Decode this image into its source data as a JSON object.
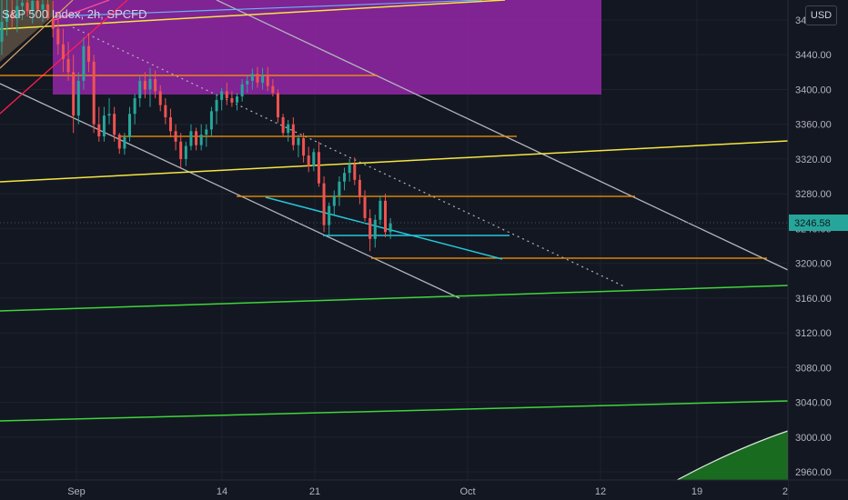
{
  "header": {
    "symbol_title": "S&P 500 Index, 2h, SPCFD",
    "currency_label": "USD"
  },
  "colors": {
    "background": "#131722",
    "grid": "#1e222d",
    "up": "#26a69a",
    "down": "#ef5350",
    "last_price_bg": "#26a69a",
    "fib_zone": "#9c27b0"
  },
  "chart_data": {
    "type": "candlestick",
    "x_ticks": [
      "Sep",
      "14",
      "21",
      "Oct",
      "12",
      "19",
      "2"
    ],
    "y_ticks": [
      3480,
      3440,
      3400,
      3360,
      3320,
      3280,
      3240,
      3200,
      3160,
      3120,
      3080,
      3040,
      3000,
      2960
    ],
    "ylim": [
      2955,
      3510
    ],
    "last_price": "3246.58",
    "grid": true,
    "candles": [
      {
        "o": 3455,
        "h": 3510,
        "l": 3440,
        "c": 3478
      },
      {
        "o": 3478,
        "h": 3506,
        "l": 3462,
        "c": 3490
      },
      {
        "o": 3490,
        "h": 3512,
        "l": 3470,
        "c": 3482
      },
      {
        "o": 3482,
        "h": 3505,
        "l": 3466,
        "c": 3496
      },
      {
        "o": 3496,
        "h": 3515,
        "l": 3480,
        "c": 3500
      },
      {
        "o": 3500,
        "h": 3516,
        "l": 3484,
        "c": 3490
      },
      {
        "o": 3490,
        "h": 3512,
        "l": 3476,
        "c": 3502
      },
      {
        "o": 3502,
        "h": 3514,
        "l": 3488,
        "c": 3492
      },
      {
        "o": 3492,
        "h": 3510,
        "l": 3478,
        "c": 3498
      },
      {
        "o": 3498,
        "h": 3512,
        "l": 3480,
        "c": 3482
      },
      {
        "o": 3482,
        "h": 3502,
        "l": 3460,
        "c": 3470
      },
      {
        "o": 3470,
        "h": 3490,
        "l": 3440,
        "c": 3452
      },
      {
        "o": 3452,
        "h": 3470,
        "l": 3420,
        "c": 3435
      },
      {
        "o": 3435,
        "h": 3455,
        "l": 3410,
        "c": 3420
      },
      {
        "o": 3420,
        "h": 3440,
        "l": 3350,
        "c": 3370
      },
      {
        "o": 3370,
        "h": 3420,
        "l": 3360,
        "c": 3410
      },
      {
        "o": 3410,
        "h": 3460,
        "l": 3400,
        "c": 3450
      },
      {
        "o": 3450,
        "h": 3465,
        "l": 3420,
        "c": 3432
      },
      {
        "o": 3432,
        "h": 3440,
        "l": 3350,
        "c": 3360
      },
      {
        "o": 3360,
        "h": 3380,
        "l": 3340,
        "c": 3346
      },
      {
        "o": 3346,
        "h": 3380,
        "l": 3340,
        "c": 3370
      },
      {
        "o": 3370,
        "h": 3390,
        "l": 3360,
        "c": 3372
      },
      {
        "o": 3372,
        "h": 3380,
        "l": 3340,
        "c": 3348
      },
      {
        "o": 3348,
        "h": 3350,
        "l": 3326,
        "c": 3332
      },
      {
        "o": 3332,
        "h": 3350,
        "l": 3325,
        "c": 3345
      },
      {
        "o": 3345,
        "h": 3380,
        "l": 3340,
        "c": 3372
      },
      {
        "o": 3372,
        "h": 3395,
        "l": 3360,
        "c": 3390
      },
      {
        "o": 3390,
        "h": 3415,
        "l": 3380,
        "c": 3410
      },
      {
        "o": 3410,
        "h": 3420,
        "l": 3390,
        "c": 3400
      },
      {
        "o": 3400,
        "h": 3425,
        "l": 3380,
        "c": 3412
      },
      {
        "o": 3412,
        "h": 3422,
        "l": 3390,
        "c": 3398
      },
      {
        "o": 3398,
        "h": 3405,
        "l": 3375,
        "c": 3382
      },
      {
        "o": 3382,
        "h": 3390,
        "l": 3360,
        "c": 3368
      },
      {
        "o": 3368,
        "h": 3378,
        "l": 3345,
        "c": 3352
      },
      {
        "o": 3352,
        "h": 3360,
        "l": 3330,
        "c": 3340
      },
      {
        "o": 3340,
        "h": 3350,
        "l": 3310,
        "c": 3320
      },
      {
        "o": 3320,
        "h": 3340,
        "l": 3312,
        "c": 3335
      },
      {
        "o": 3335,
        "h": 3360,
        "l": 3330,
        "c": 3352
      },
      {
        "o": 3352,
        "h": 3356,
        "l": 3330,
        "c": 3336
      },
      {
        "o": 3336,
        "h": 3360,
        "l": 3330,
        "c": 3348
      },
      {
        "o": 3348,
        "h": 3360,
        "l": 3334,
        "c": 3354
      },
      {
        "o": 3354,
        "h": 3380,
        "l": 3346,
        "c": 3375
      },
      {
        "o": 3375,
        "h": 3395,
        "l": 3360,
        "c": 3388
      },
      {
        "o": 3388,
        "h": 3402,
        "l": 3376,
        "c": 3398
      },
      {
        "o": 3398,
        "h": 3408,
        "l": 3382,
        "c": 3390
      },
      {
        "o": 3390,
        "h": 3398,
        "l": 3380,
        "c": 3385
      },
      {
        "o": 3385,
        "h": 3396,
        "l": 3376,
        "c": 3392
      },
      {
        "o": 3392,
        "h": 3412,
        "l": 3386,
        "c": 3406
      },
      {
        "o": 3406,
        "h": 3416,
        "l": 3396,
        "c": 3410
      },
      {
        "o": 3410,
        "h": 3424,
        "l": 3400,
        "c": 3418
      },
      {
        "o": 3418,
        "h": 3426,
        "l": 3402,
        "c": 3408
      },
      {
        "o": 3408,
        "h": 3425,
        "l": 3400,
        "c": 3416
      },
      {
        "o": 3416,
        "h": 3426,
        "l": 3398,
        "c": 3404
      },
      {
        "o": 3404,
        "h": 3412,
        "l": 3392,
        "c": 3396
      },
      {
        "o": 3396,
        "h": 3400,
        "l": 3362,
        "c": 3368
      },
      {
        "o": 3368,
        "h": 3372,
        "l": 3346,
        "c": 3350
      },
      {
        "o": 3350,
        "h": 3365,
        "l": 3340,
        "c": 3360
      },
      {
        "o": 3360,
        "h": 3368,
        "l": 3330,
        "c": 3336
      },
      {
        "o": 3336,
        "h": 3348,
        "l": 3322,
        "c": 3344
      },
      {
        "o": 3344,
        "h": 3350,
        "l": 3316,
        "c": 3324
      },
      {
        "o": 3324,
        "h": 3334,
        "l": 3305,
        "c": 3312
      },
      {
        "o": 3312,
        "h": 3332,
        "l": 3306,
        "c": 3328
      },
      {
        "o": 3328,
        "h": 3340,
        "l": 3288,
        "c": 3292
      },
      {
        "o": 3292,
        "h": 3300,
        "l": 3236,
        "c": 3244
      },
      {
        "o": 3244,
        "h": 3270,
        "l": 3232,
        "c": 3266
      },
      {
        "o": 3266,
        "h": 3284,
        "l": 3256,
        "c": 3278
      },
      {
        "o": 3278,
        "h": 3300,
        "l": 3266,
        "c": 3294
      },
      {
        "o": 3294,
        "h": 3310,
        "l": 3284,
        "c": 3304
      },
      {
        "o": 3304,
        "h": 3320,
        "l": 3294,
        "c": 3314
      },
      {
        "o": 3314,
        "h": 3322,
        "l": 3290,
        "c": 3296
      },
      {
        "o": 3296,
        "h": 3302,
        "l": 3268,
        "c": 3276
      },
      {
        "o": 3276,
        "h": 3284,
        "l": 3248,
        "c": 3252
      },
      {
        "o": 3252,
        "h": 3262,
        "l": 3214,
        "c": 3228
      },
      {
        "o": 3228,
        "h": 3256,
        "l": 3218,
        "c": 3250
      },
      {
        "o": 3250,
        "h": 3278,
        "l": 3244,
        "c": 3272
      },
      {
        "o": 3272,
        "h": 3280,
        "l": 3230,
        "c": 3236
      },
      {
        "o": 3236,
        "h": 3252,
        "l": 3228,
        "c": 3246
      }
    ]
  }
}
